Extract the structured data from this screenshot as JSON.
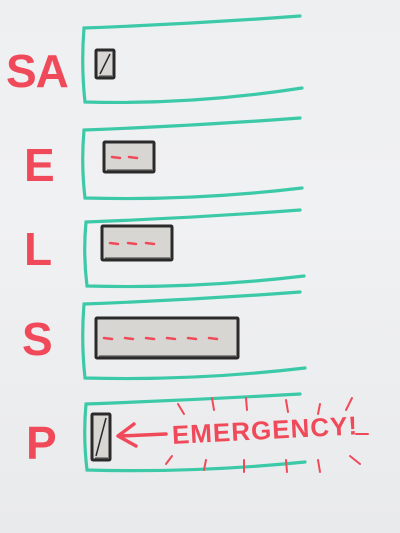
{
  "colors": {
    "label": "#f04a5a",
    "frame": "#3cc9a8",
    "bar": "#2a2a2a",
    "bar_fill": "#d8d6d2",
    "dash": "#f04a5a",
    "burst": "#f04a5a"
  },
  "rows": [
    {
      "label": "SA"
    },
    {
      "label": "E"
    },
    {
      "label": "L"
    },
    {
      "label": "S"
    },
    {
      "label": "P"
    }
  ],
  "callout": {
    "text": "EMERGENCY!"
  }
}
